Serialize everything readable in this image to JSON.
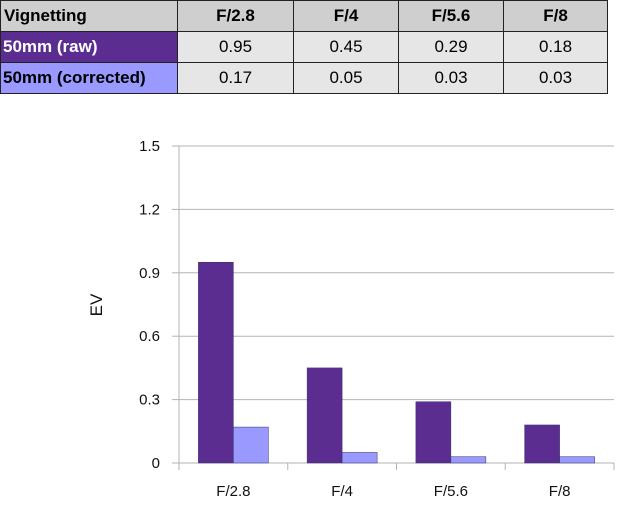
{
  "table": {
    "corner_label": "Vignetting",
    "columns": [
      "F/2.8",
      "F/4",
      "F/5.6",
      "F/8"
    ],
    "rows": [
      {
        "label": "50mm (raw)",
        "color": "#5c2d91",
        "values": [
          "0.95",
          "0.45",
          "0.29",
          "0.18"
        ]
      },
      {
        "label": "50mm (corrected)",
        "color": "#9999ff",
        "values": [
          "0.17",
          "0.05",
          "0.03",
          "0.03"
        ]
      }
    ]
  },
  "chart_data": {
    "type": "bar",
    "categories": [
      "F/2.8",
      "F/4",
      "F/5.6",
      "F/8"
    ],
    "series": [
      {
        "name": "50mm (raw)",
        "color": "#5c2d91",
        "values": [
          0.95,
          0.45,
          0.29,
          0.18
        ]
      },
      {
        "name": "50mm (corrected)",
        "color": "#9999ff",
        "values": [
          0.17,
          0.05,
          0.03,
          0.03
        ]
      }
    ],
    "ylabel": "EV",
    "xlabel": "",
    "ylim": [
      0,
      1.5
    ],
    "yticks": [
      "0",
      "0.3",
      "0.6",
      "0.9",
      "1.2",
      "1.5"
    ],
    "grid": true,
    "legend": "none"
  }
}
